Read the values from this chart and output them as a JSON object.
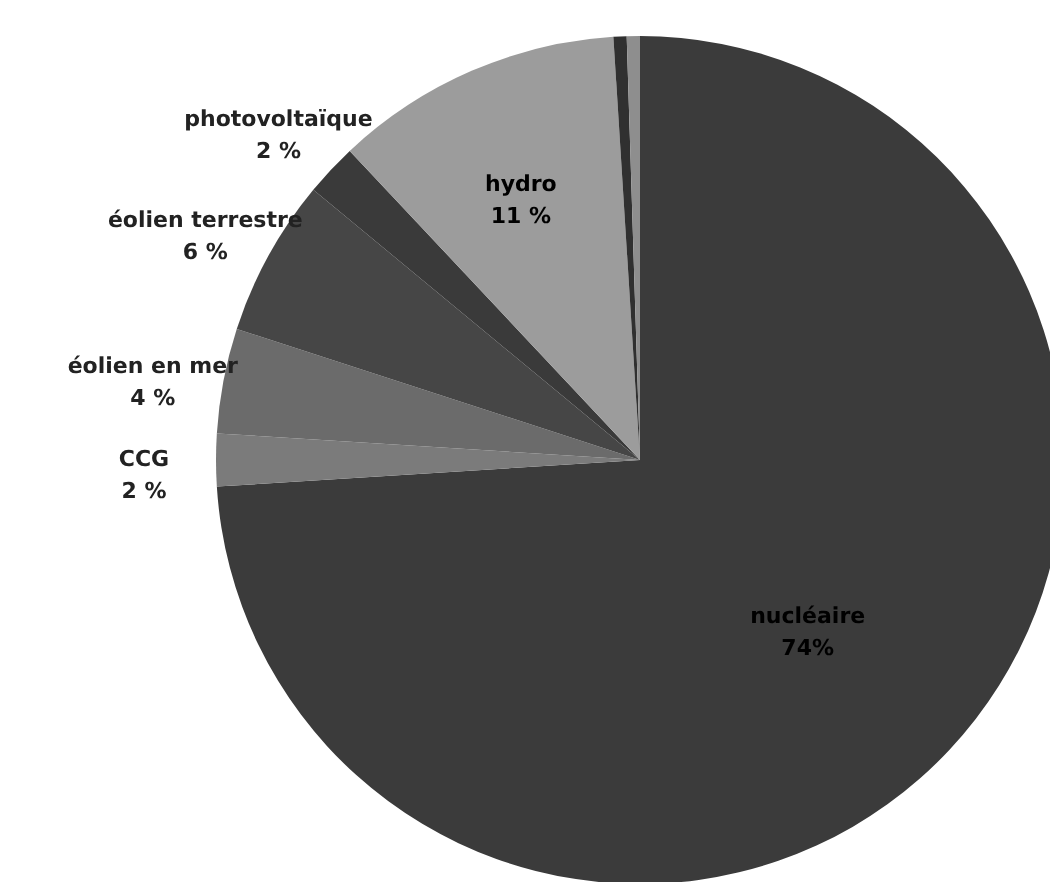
{
  "chart_data": {
    "type": "pie",
    "categories": [
      "nucléaire",
      "CCG",
      "éolien en mer",
      "éolien terrestre",
      "photovoltaïque",
      "hydro",
      null,
      null
    ],
    "values": [
      74,
      2,
      4,
      6,
      2,
      11,
      0.5,
      0.5
    ],
    "value_labels": [
      "74%",
      "2 %",
      "4 %",
      "6 %",
      "2 %",
      "11 %",
      null,
      null
    ],
    "colors": [
      "#3b3b3b",
      "#7b7b7b",
      "#6b6b6b",
      "#464646",
      "#3a3a3a",
      "#9c9c9c",
      "#303030",
      "#8e8e8e"
    ]
  }
}
